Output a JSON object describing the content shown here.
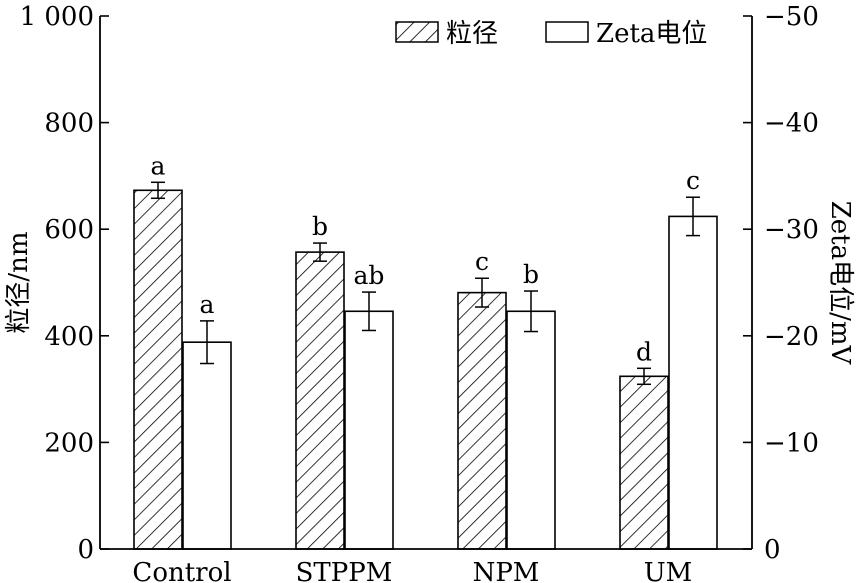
{
  "chart_data": {
    "type": "bar",
    "categories": [
      "Control",
      "STPPM",
      "NPM",
      "UM"
    ],
    "left_axis": {
      "label": "粒径/nm",
      "ylim": [
        0,
        1000
      ],
      "ticks": [
        0,
        200,
        400,
        600,
        800,
        1000
      ],
      "tick_labels": [
        "0",
        "200",
        "400",
        "600",
        "800",
        "1 000"
      ]
    },
    "right_axis": {
      "label": "Zeta电位/mV",
      "ylim": [
        0,
        -50
      ],
      "ticks": [
        0,
        -10,
        -20,
        -30,
        -40,
        -50
      ],
      "tick_labels": [
        "0",
        "−10",
        "−20",
        "−30",
        "−40",
        "−50"
      ]
    },
    "series": [
      {
        "name": "粒径",
        "axis": "left",
        "pattern": "hatched",
        "values": [
          673,
          557,
          481,
          324
        ],
        "errors": [
          15,
          17,
          27,
          15
        ],
        "sig_labels": [
          "a",
          "b",
          "c",
          "d"
        ]
      },
      {
        "name": "Zeta电位",
        "axis": "right",
        "pattern": "open",
        "values": [
          -19.4,
          -22.3,
          -22.3,
          -31.2
        ],
        "errors": [
          2.0,
          1.8,
          1.9,
          1.8
        ],
        "sig_labels": [
          "a",
          "ab",
          "b",
          "c"
        ]
      }
    ],
    "legend": {
      "position": "top-right",
      "entries": [
        "粒径",
        "Zeta电位"
      ]
    },
    "grid": false
  }
}
